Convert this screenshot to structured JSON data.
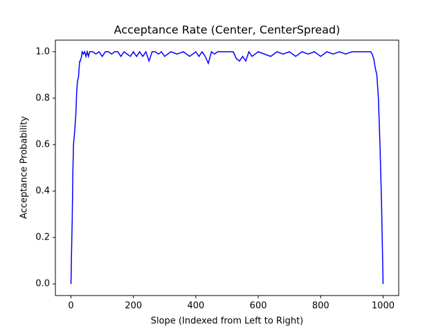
{
  "chart_data": {
    "type": "line",
    "title": "Acceptance Rate (Center, CenterSpread)",
    "x_label": "Slope (Indexed from Left to Right)",
    "y_label": "Acceptance Probability",
    "x": [
      0,
      2,
      4,
      6,
      8,
      10,
      12,
      14,
      16,
      18,
      20,
      22,
      24,
      26,
      28,
      30,
      32,
      34,
      36,
      40,
      44,
      48,
      52,
      56,
      60,
      70,
      80,
      90,
      100,
      110,
      120,
      130,
      140,
      150,
      160,
      170,
      180,
      190,
      200,
      210,
      220,
      230,
      240,
      250,
      260,
      270,
      280,
      290,
      300,
      320,
      340,
      360,
      380,
      400,
      410,
      420,
      430,
      440,
      450,
      460,
      470,
      480,
      500,
      520,
      530,
      540,
      550,
      560,
      570,
      580,
      600,
      620,
      640,
      660,
      680,
      700,
      720,
      740,
      760,
      780,
      800,
      820,
      840,
      860,
      880,
      900,
      920,
      940,
      960,
      965,
      970,
      975,
      980,
      985,
      990,
      995,
      1000
    ],
    "series": [
      {
        "color": "#0000ff",
        "values": [
          0,
          0.15,
          0.28,
          0.48,
          0.6,
          0.63,
          0.66,
          0.7,
          0.74,
          0.82,
          0.86,
          0.88,
          0.89,
          0.93,
          0.96,
          0.96,
          0.97,
          0.98,
          1.0,
          0.99,
          1.0,
          0.98,
          1.0,
          0.98,
          1.0,
          1.0,
          0.99,
          1.0,
          0.98,
          1.0,
          1.0,
          0.99,
          1.0,
          1.0,
          0.98,
          1.0,
          0.99,
          0.98,
          1.0,
          0.98,
          1.0,
          0.98,
          1.0,
          0.96,
          1.0,
          1.0,
          0.99,
          1.0,
          0.98,
          1.0,
          0.99,
          1.0,
          0.98,
          1.0,
          0.98,
          1.0,
          0.98,
          0.95,
          1.0,
          0.99,
          1.0,
          1.0,
          1.0,
          1.0,
          0.97,
          0.96,
          0.98,
          0.96,
          1.0,
          0.98,
          1.0,
          0.99,
          0.98,
          1.0,
          0.99,
          1.0,
          0.98,
          1.0,
          0.99,
          1.0,
          0.98,
          1.0,
          0.99,
          1.0,
          0.99,
          1.0,
          1.0,
          1.0,
          1.0,
          0.99,
          0.97,
          0.93,
          0.9,
          0.8,
          0.6,
          0.35,
          0
        ]
      }
    ],
    "xlim": [
      -50,
      1050
    ],
    "xticks": [
      0,
      200,
      400,
      600,
      800,
      1000
    ],
    "ylim": [
      -0.05,
      1.05
    ],
    "yticks": [
      {
        "value": 0,
        "label": "0.0"
      },
      0.2,
      0.4,
      0.6,
      0.8,
      {
        "value": 1,
        "label": "1.0"
      }
    ],
    "grid": false
  }
}
